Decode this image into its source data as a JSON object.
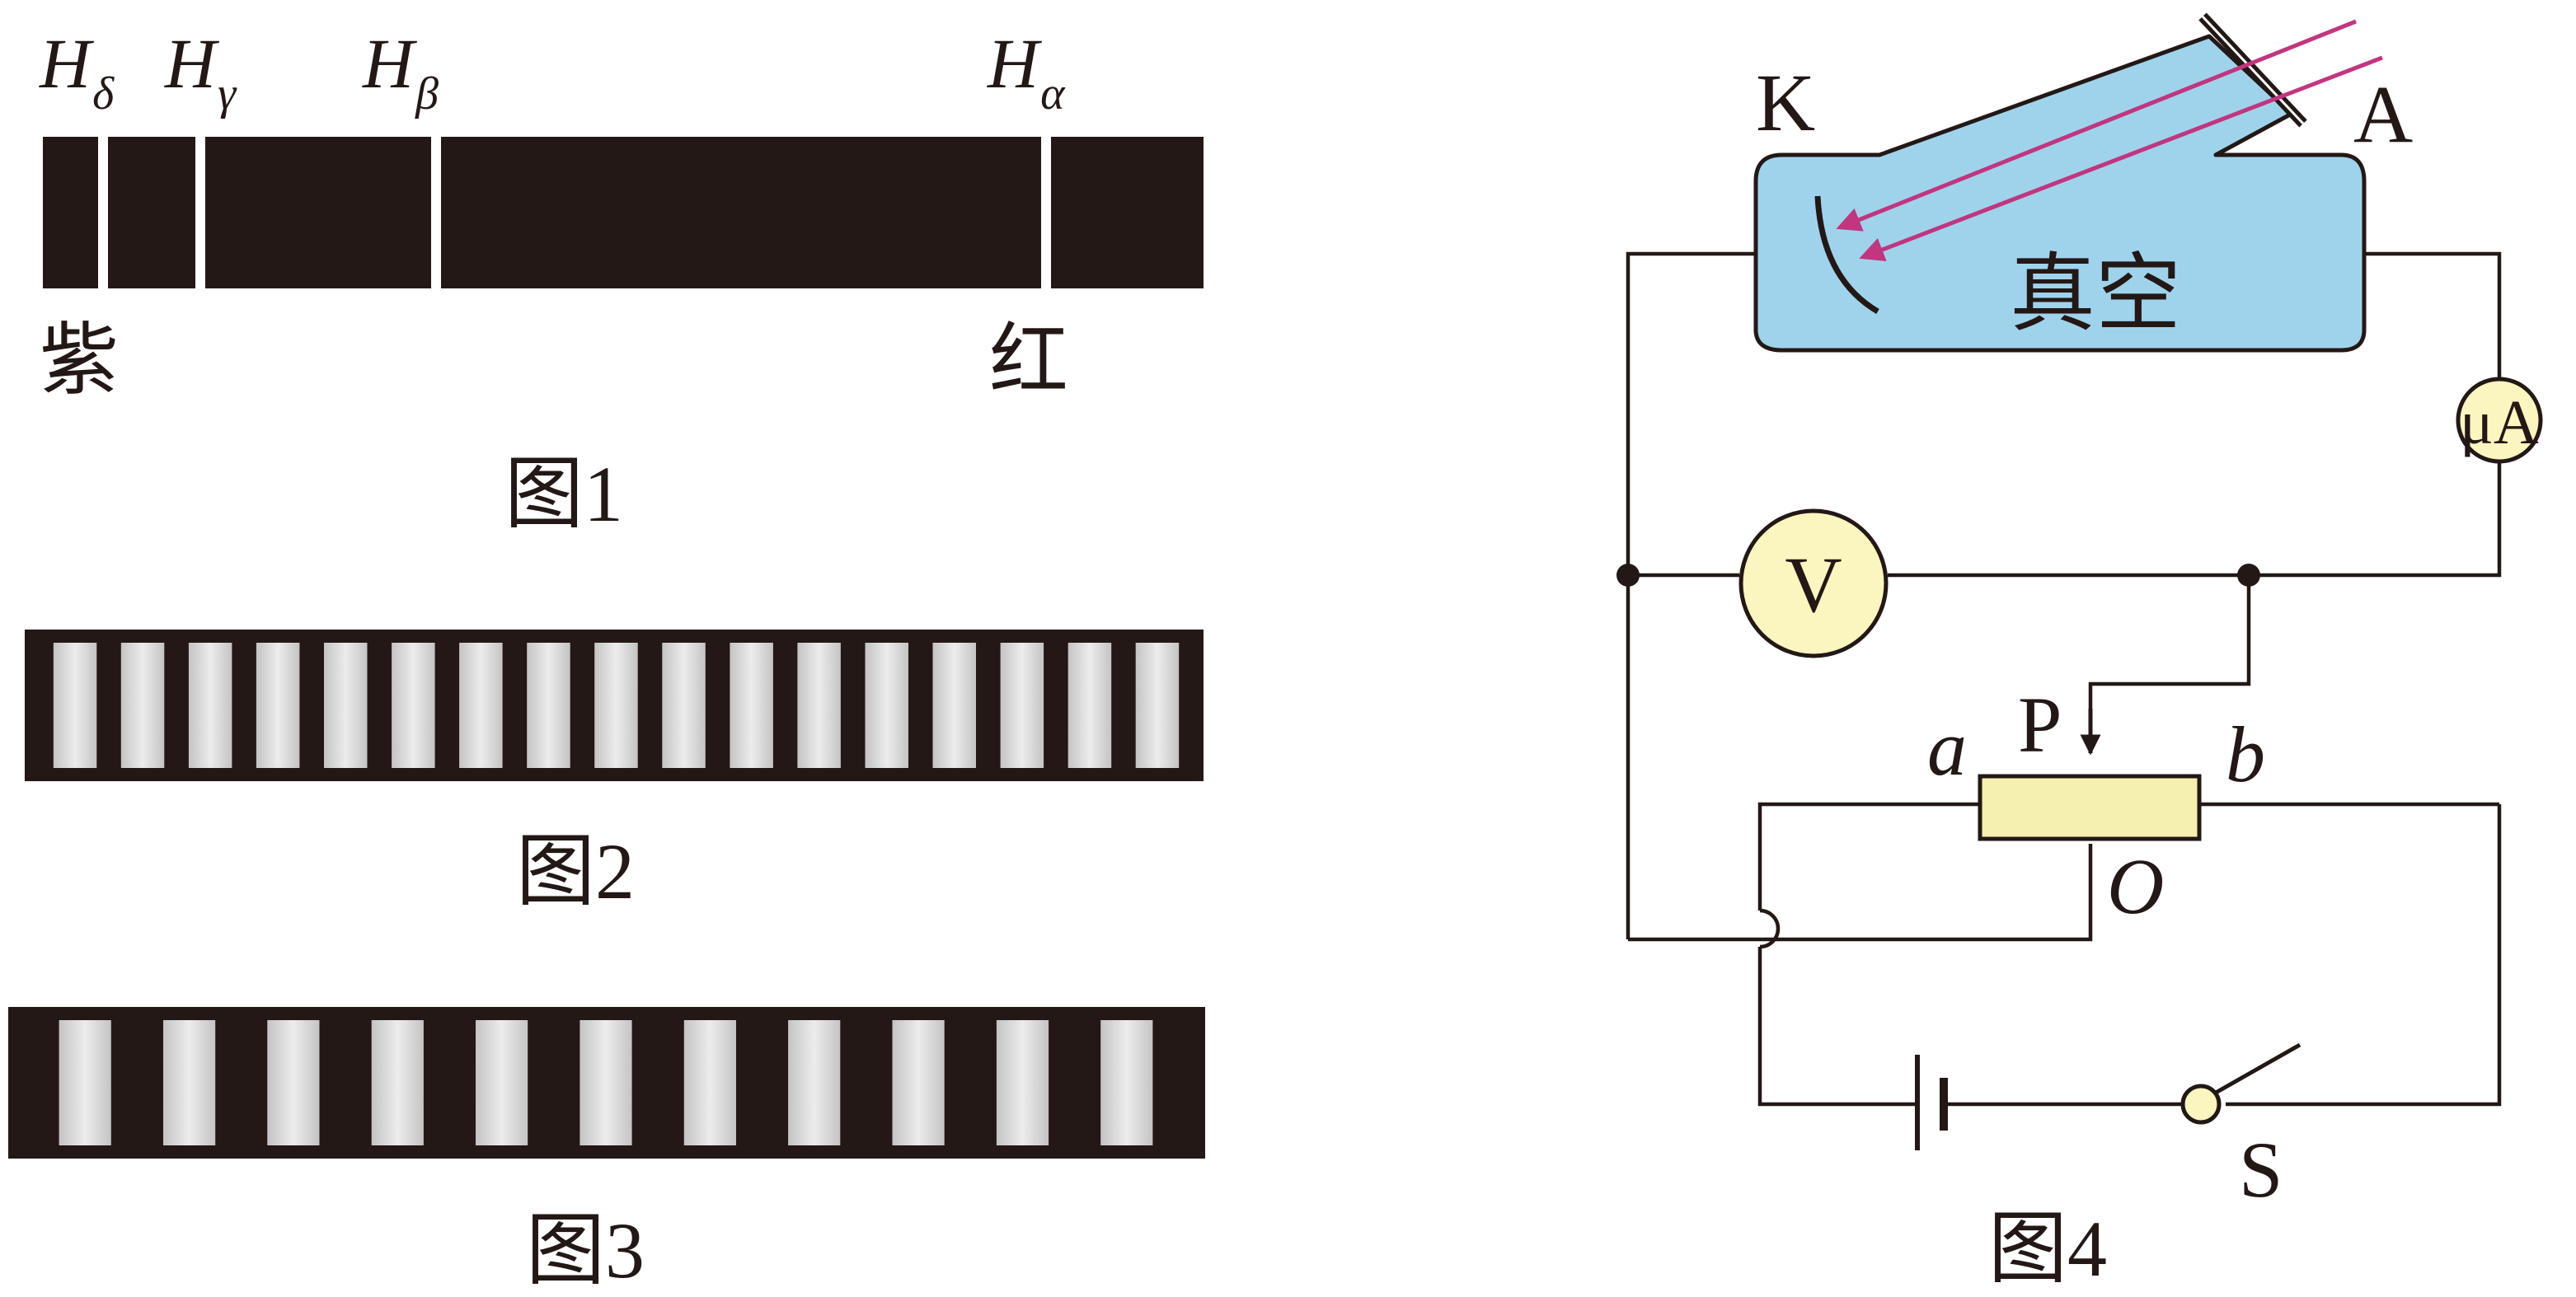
{
  "figure1": {
    "caption": "图1",
    "lines": [
      {
        "letter": "H",
        "sub": "δ"
      },
      {
        "letter": "H",
        "sub": "γ"
      },
      {
        "letter": "H",
        "sub": "β"
      },
      {
        "letter": "H",
        "sub": "α"
      }
    ],
    "violet_label": "紫",
    "red_label": "红"
  },
  "figure2": {
    "caption": "图2",
    "slit_count": 17
  },
  "figure3": {
    "caption": "图3",
    "slit_count": 11
  },
  "figure4": {
    "caption": "图4",
    "cathode_label": "K",
    "anode_label": "A",
    "vacuum_label": "真空",
    "microammeter_label": "μA",
    "voltmeter_label": "V",
    "slider_label": "P",
    "end_a_label": "a",
    "end_b_label": "b",
    "midpoint_label": "O",
    "switch_label": "S"
  },
  "colors": {
    "ink": "#231815",
    "tube_fill": "#9fd3ec",
    "meter_fill": "#fbf6bf",
    "rheostat_fill": "#f6f0b0",
    "light_rays": "#c2357f"
  }
}
